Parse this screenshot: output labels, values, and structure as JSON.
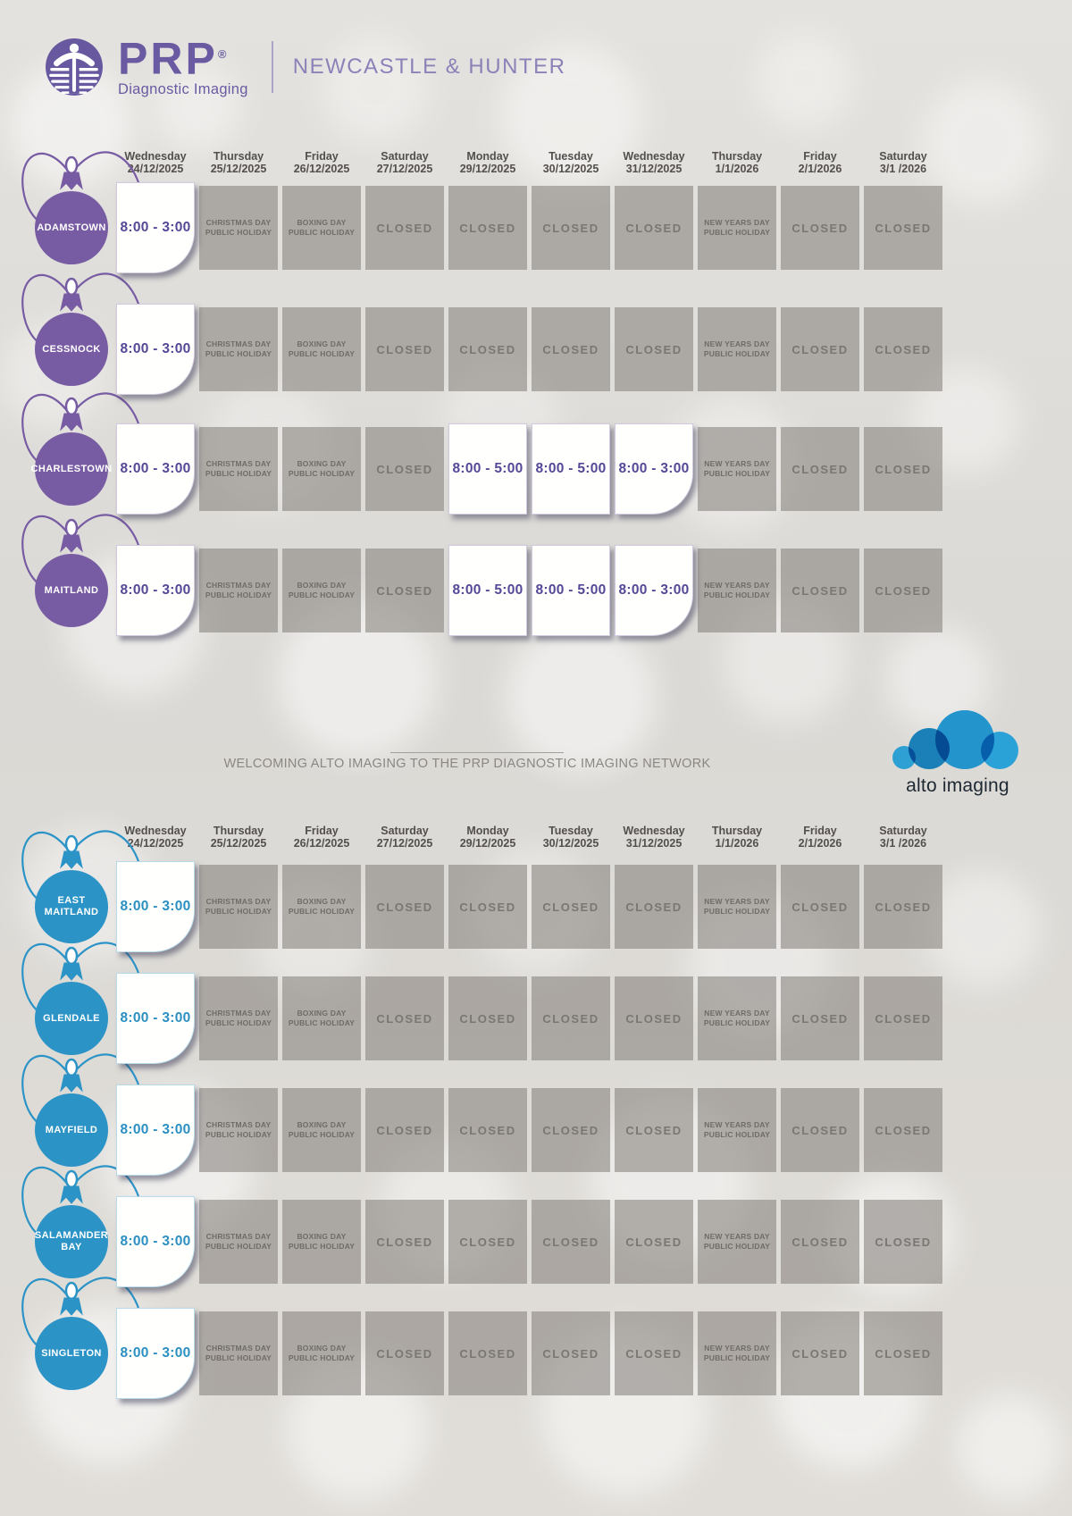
{
  "page_title": "PRP Diagnostic Imaging holiday hours",
  "header": {
    "brand": {
      "name": "PRP",
      "registered": "®",
      "tagline": "Diagnostic Imaging"
    },
    "region": "NEWCASTLE & HUNTER"
  },
  "columns": [
    {
      "day": "Wednesday",
      "date": "24/12/2025"
    },
    {
      "day": "Thursday",
      "date": "25/12/2025"
    },
    {
      "day": "Friday",
      "date": "26/12/2025"
    },
    {
      "day": "Saturday",
      "date": "27/12/2025"
    },
    {
      "day": "Monday",
      "date": "29/12/2025"
    },
    {
      "day": "Tuesday",
      "date": "30/12/2025"
    },
    {
      "day": "Wednesday",
      "date": "31/12/2025"
    },
    {
      "day": "Thursday",
      "date": "1/1/2026"
    },
    {
      "day": "Friday",
      "date": "2/1/2026"
    },
    {
      "day": "Saturday",
      "date": "3/1 /2026"
    }
  ],
  "cell_texts": {
    "christmas": [
      "CHRISTMAS DAY",
      "PUBLIC HOLIDAY"
    ],
    "boxing": [
      "BOXING DAY",
      "PUBLIC HOLIDAY"
    ],
    "newyears": [
      "NEW YEARS DAY",
      "PUBLIC HOLIDAY"
    ],
    "closed": "CLOSED"
  },
  "banner": {
    "text": "WELCOMING ALTO IMAGING TO THE PRP DIAGNOSTIC IMAGING NETWORK"
  },
  "alto_logo": {
    "text": "alto imaging"
  },
  "colors": {
    "prp_purple": "#6a5aa2",
    "alto_blue": "#2b93c6",
    "cell_gray": "#a7a4a0"
  },
  "sections": [
    {
      "id": "prp",
      "accent": "#775ba3",
      "hours_color": "#544897",
      "rows": [
        {
          "location": [
            "ADAMSTOWN"
          ],
          "cells": [
            {
              "t": "open",
              "v": "8:00 - 3:00",
              "end": true
            },
            {
              "t": "christmas"
            },
            {
              "t": "boxing"
            },
            {
              "t": "closed"
            },
            {
              "t": "closed"
            },
            {
              "t": "closed"
            },
            {
              "t": "closed"
            },
            {
              "t": "newyears"
            },
            {
              "t": "closed"
            },
            {
              "t": "closed"
            }
          ]
        },
        {
          "location": [
            "CESSNOCK"
          ],
          "cells": [
            {
              "t": "open",
              "v": "8:00 - 3:00",
              "end": true
            },
            {
              "t": "christmas"
            },
            {
              "t": "boxing"
            },
            {
              "t": "closed"
            },
            {
              "t": "closed"
            },
            {
              "t": "closed"
            },
            {
              "t": "closed"
            },
            {
              "t": "newyears"
            },
            {
              "t": "closed"
            },
            {
              "t": "closed"
            }
          ]
        },
        {
          "location": [
            "CHARLESTOWN"
          ],
          "cells": [
            {
              "t": "open",
              "v": "8:00 - 3:00",
              "end": true
            },
            {
              "t": "christmas"
            },
            {
              "t": "boxing"
            },
            {
              "t": "closed"
            },
            {
              "t": "open",
              "v": "8:00 - 5:00"
            },
            {
              "t": "open",
              "v": "8:00 - 5:00"
            },
            {
              "t": "open",
              "v": "8:00 - 3:00",
              "end": true
            },
            {
              "t": "newyears"
            },
            {
              "t": "closed"
            },
            {
              "t": "closed"
            }
          ]
        },
        {
          "location": [
            "MAITLAND"
          ],
          "cells": [
            {
              "t": "open",
              "v": "8:00 - 3:00",
              "end": true
            },
            {
              "t": "christmas"
            },
            {
              "t": "boxing"
            },
            {
              "t": "closed"
            },
            {
              "t": "open",
              "v": "8:00 - 5:00"
            },
            {
              "t": "open",
              "v": "8:00 - 5:00"
            },
            {
              "t": "open",
              "v": "8:00 - 3:00",
              "end": true
            },
            {
              "t": "newyears"
            },
            {
              "t": "closed"
            },
            {
              "t": "closed"
            }
          ]
        }
      ]
    },
    {
      "id": "alto",
      "accent": "#2b93c6",
      "hours_color": "#2b8fc2",
      "rows": [
        {
          "location": [
            "EAST",
            "MAITLAND"
          ],
          "cells": [
            {
              "t": "open",
              "v": "8:00 - 3:00",
              "end": true
            },
            {
              "t": "christmas"
            },
            {
              "t": "boxing"
            },
            {
              "t": "closed"
            },
            {
              "t": "closed"
            },
            {
              "t": "closed"
            },
            {
              "t": "closed"
            },
            {
              "t": "newyears"
            },
            {
              "t": "closed"
            },
            {
              "t": "closed"
            }
          ]
        },
        {
          "location": [
            "GLENDALE"
          ],
          "cells": [
            {
              "t": "open",
              "v": "8:00 - 3:00",
              "end": true
            },
            {
              "t": "christmas"
            },
            {
              "t": "boxing"
            },
            {
              "t": "closed"
            },
            {
              "t": "closed"
            },
            {
              "t": "closed"
            },
            {
              "t": "closed"
            },
            {
              "t": "newyears"
            },
            {
              "t": "closed"
            },
            {
              "t": "closed"
            }
          ]
        },
        {
          "location": [
            "MAYFIELD"
          ],
          "cells": [
            {
              "t": "open",
              "v": "8:00 - 3:00",
              "end": true
            },
            {
              "t": "christmas"
            },
            {
              "t": "boxing"
            },
            {
              "t": "closed"
            },
            {
              "t": "closed"
            },
            {
              "t": "closed"
            },
            {
              "t": "closed"
            },
            {
              "t": "newyears"
            },
            {
              "t": "closed"
            },
            {
              "t": "closed"
            }
          ]
        },
        {
          "location": [
            "SALAMANDER",
            "BAY"
          ],
          "cells": [
            {
              "t": "open",
              "v": "8:00 - 3:00",
              "end": true
            },
            {
              "t": "christmas"
            },
            {
              "t": "boxing"
            },
            {
              "t": "closed"
            },
            {
              "t": "closed"
            },
            {
              "t": "closed"
            },
            {
              "t": "closed"
            },
            {
              "t": "newyears"
            },
            {
              "t": "closed"
            },
            {
              "t": "closed"
            }
          ]
        },
        {
          "location": [
            "SINGLETON"
          ],
          "cells": [
            {
              "t": "open",
              "v": "8:00 - 3:00",
              "end": true
            },
            {
              "t": "christmas"
            },
            {
              "t": "boxing"
            },
            {
              "t": "closed"
            },
            {
              "t": "closed"
            },
            {
              "t": "closed"
            },
            {
              "t": "closed"
            },
            {
              "t": "newyears"
            },
            {
              "t": "closed"
            },
            {
              "t": "closed"
            }
          ]
        }
      ]
    }
  ]
}
